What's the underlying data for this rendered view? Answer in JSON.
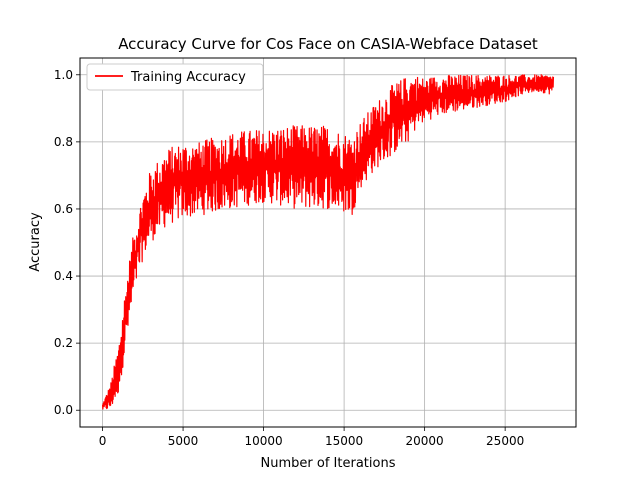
{
  "chart_data": {
    "type": "line",
    "title": "Accuracy Curve for Cos Face on CASIA-Webface Dataset",
    "xlabel": "Number of Iterations",
    "ylabel": "Accuracy",
    "xlim": [
      -1400,
      29400
    ],
    "ylim": [
      -0.05,
      1.05
    ],
    "xticks": [
      0,
      5000,
      10000,
      15000,
      20000,
      25000
    ],
    "xtick_labels": [
      "0",
      "5000",
      "10000",
      "15000",
      "20000",
      "25000"
    ],
    "yticks": [
      0.0,
      0.2,
      0.4,
      0.6,
      0.8,
      1.0
    ],
    "ytick_labels": [
      "0.0",
      "0.2",
      "0.4",
      "0.6",
      "0.8",
      "1.0"
    ],
    "grid": true,
    "legend_position": "top-left",
    "series": [
      {
        "name": "Training Accuracy",
        "color": "#ff0000",
        "envelope": {
          "x": [
            0,
            500,
            1000,
            1500,
            2000,
            2500,
            3000,
            4000,
            5000,
            6000,
            8000,
            10000,
            12000,
            14000,
            15500,
            16000,
            17000,
            18000,
            19000,
            19500,
            20000,
            21000,
            22000,
            23000,
            24000,
            25000,
            26000,
            27000,
            28000
          ],
          "lower": [
            0.0,
            0.0,
            0.05,
            0.2,
            0.35,
            0.45,
            0.5,
            0.55,
            0.57,
            0.58,
            0.6,
            0.62,
            0.6,
            0.6,
            0.58,
            0.66,
            0.72,
            0.76,
            0.8,
            0.84,
            0.86,
            0.88,
            0.89,
            0.9,
            0.91,
            0.92,
            0.94,
            0.95,
            0.94
          ],
          "upper": [
            0.02,
            0.08,
            0.2,
            0.4,
            0.55,
            0.65,
            0.72,
            0.78,
            0.8,
            0.8,
            0.83,
            0.84,
            0.85,
            0.85,
            0.82,
            0.86,
            0.92,
            0.97,
            1.0,
            1.0,
            0.99,
            1.0,
            1.0,
            1.0,
            1.0,
            1.0,
            1.0,
            1.0,
            1.0
          ]
        }
      }
    ]
  }
}
